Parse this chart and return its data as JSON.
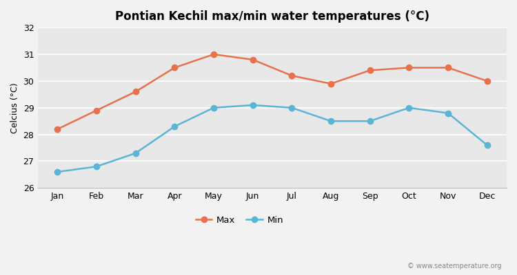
{
  "title": "Pontian Kechil max/min water temperatures (°C)",
  "ylabel": "Celcius (°C)",
  "months": [
    "Jan",
    "Feb",
    "Mar",
    "Apr",
    "May",
    "Jun",
    "Jul",
    "Aug",
    "Sep",
    "Oct",
    "Nov",
    "Dec"
  ],
  "max_temps": [
    28.2,
    28.9,
    29.6,
    30.5,
    31.0,
    30.8,
    30.2,
    29.9,
    30.4,
    30.5,
    30.5,
    30.0
  ],
  "min_temps": [
    26.6,
    26.8,
    27.3,
    28.3,
    29.0,
    29.1,
    29.0,
    28.5,
    28.5,
    29.0,
    28.8,
    27.6
  ],
  "max_color": "#e8704a",
  "min_color": "#5ab4d6",
  "bg_color": "#f2f2f2",
  "plot_bg_color": "#e8e8e8",
  "ylim": [
    26,
    32
  ],
  "yticks": [
    26,
    27,
    28,
    29,
    30,
    31,
    32
  ],
  "watermark": "© www.seatemperature.org",
  "legend_max": "Max",
  "legend_min": "Min",
  "title_fontsize": 12,
  "axis_fontsize": 9,
  "grid_color": "#ffffff",
  "spine_color": "#bbbbbb"
}
